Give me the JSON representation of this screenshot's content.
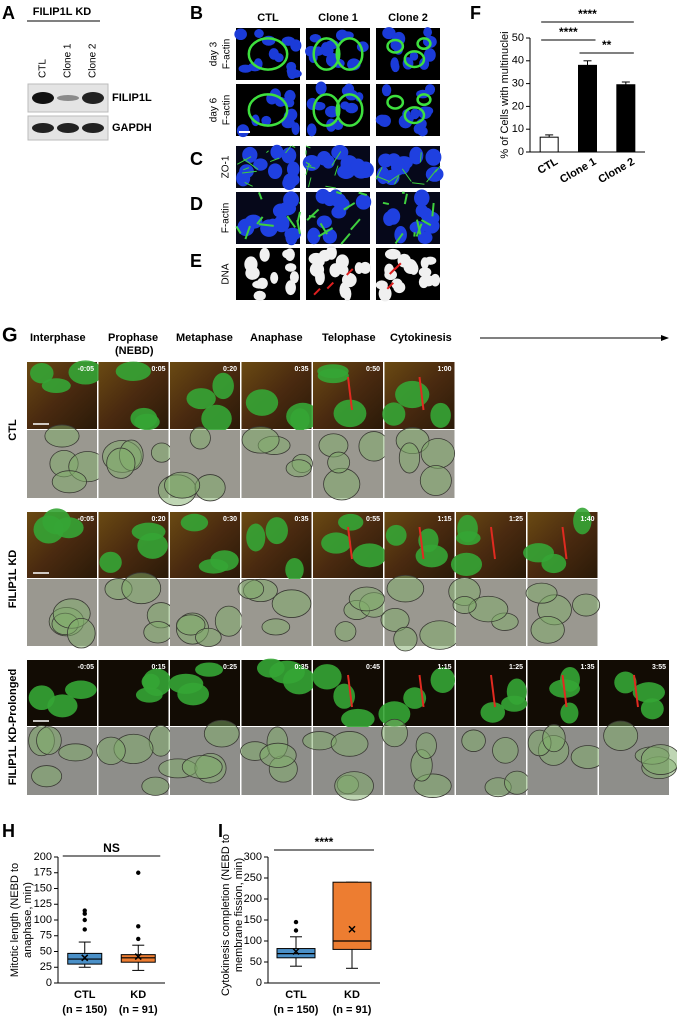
{
  "panels": {
    "A": {
      "letter": "A",
      "group_label": "FILIP1L KD",
      "lanes": [
        "CTL",
        "Clone 1",
        "Clone 2"
      ],
      "bands": [
        "FILIP1L",
        "GAPDH"
      ]
    },
    "B": {
      "letter": "B",
      "columns": [
        "CTL",
        "Clone 1",
        "Clone 2"
      ],
      "rows": [
        [
          "day 3",
          "F-actin"
        ],
        [
          "day 6",
          "F-actin"
        ]
      ]
    },
    "C": {
      "letter": "C",
      "row_label": "ZO-1"
    },
    "D": {
      "letter": "D",
      "row_label": "F-actin"
    },
    "E": {
      "letter": "E",
      "row_label": "DNA"
    },
    "G": {
      "letter": "G",
      "phases": [
        "Interphase",
        "Prophase",
        "Metaphase",
        "Anaphase",
        "Telophase",
        "Cytokinesis"
      ],
      "phase_note": "(NEBD)",
      "rows": [
        {
          "label": "CTL",
          "times": [
            "-0:05",
            "0:05",
            "0:20",
            "0:35",
            "0:50",
            "1:00"
          ]
        },
        {
          "label": "FILIP1L KD",
          "times": [
            "-0:05",
            "0:20",
            "0:30",
            "0:35",
            "0:55",
            "1:15",
            "1:25",
            "1:40"
          ]
        },
        {
          "label": "FILIP1L KD-Prolonged",
          "times": [
            "-0:05",
            "0:15",
            "0:25",
            "0:35",
            "0:45",
            "1:15",
            "1:25",
            "1:35",
            "3:55"
          ]
        }
      ]
    }
  },
  "chart_data": [
    {
      "type": "bar",
      "letter": "F",
      "y_label": "% of Cells with multinuclei",
      "categories": [
        "CTL",
        "Clone 1",
        "Clone 2"
      ],
      "values": [
        6.5,
        38,
        29.5
      ],
      "errors": [
        1,
        2,
        1.2
      ],
      "colors": [
        "#ffffff",
        "#000000",
        "#000000"
      ],
      "ylim": [
        0,
        50
      ],
      "yticks": [
        0,
        10,
        20,
        30,
        40,
        50
      ],
      "significance": [
        "****",
        "****",
        "**"
      ]
    },
    {
      "type": "box",
      "letter": "H",
      "y_label": "Mitotic length (NEBD to anaphase, min)",
      "categories": [
        "CTL",
        "KD"
      ],
      "sample_sizes": [
        "(n = 150)",
        "(n = 91)"
      ],
      "boxes": [
        {
          "whisker_low": 25,
          "q1": 30,
          "median": 38,
          "q3": 47,
          "whisker_high": 65,
          "mean": 40,
          "outliers": [
            85,
            100,
            110,
            115
          ]
        },
        {
          "whisker_low": 20,
          "q1": 33,
          "median": 40,
          "q3": 45,
          "whisker_high": 60,
          "mean": 42,
          "outliers": [
            70,
            90,
            175
          ]
        }
      ],
      "colors": [
        "#4a90c8",
        "#ed7d31"
      ],
      "ylim": [
        0,
        200
      ],
      "yticks": [
        0,
        25,
        50,
        75,
        100,
        125,
        150,
        175,
        200
      ],
      "significance": [
        "NS"
      ]
    },
    {
      "type": "box",
      "letter": "I",
      "y_label": "Cytokinesis completion (NEBD to membrane fission, min)",
      "categories": [
        "CTL",
        "KD"
      ],
      "sample_sizes": [
        "(n = 150)",
        "(n = 91)"
      ],
      "boxes": [
        {
          "whisker_low": 40,
          "q1": 60,
          "median": 70,
          "q3": 82,
          "whisker_high": 110,
          "mean": 75,
          "outliers": [
            125,
            145
          ]
        },
        {
          "whisker_low": 35,
          "q1": 80,
          "median": 100,
          "q3": 240,
          "whisker_high": 240,
          "mean": 128,
          "outliers": []
        }
      ],
      "colors": [
        "#4a90c8",
        "#ed7d31"
      ],
      "ylim": [
        0,
        300
      ],
      "yticks": [
        0,
        50,
        100,
        150,
        200,
        250,
        300
      ],
      "significance": [
        "****"
      ]
    }
  ]
}
